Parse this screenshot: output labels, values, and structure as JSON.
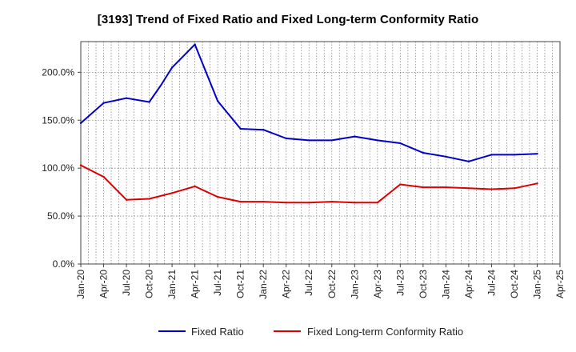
{
  "chart_data": {
    "type": "line",
    "title": "[3193]  Trend of Fixed Ratio and Fixed Long-term Conformity Ratio",
    "xlabel": "",
    "ylabel": "",
    "x": [
      "Jan-20",
      "Apr-20",
      "Jul-20",
      "Oct-20",
      "Jan-21",
      "Apr-21",
      "Jul-21",
      "Oct-21",
      "Jan-22",
      "Apr-22",
      "Jul-22",
      "Oct-22",
      "Jan-23",
      "Apr-23",
      "Jul-23",
      "Oct-23",
      "Jan-24",
      "Apr-24",
      "Jul-24",
      "Oct-24",
      "Jan-25"
    ],
    "x_ticks": [
      "Jan-20",
      "Apr-20",
      "Jul-20",
      "Oct-20",
      "Jan-21",
      "Apr-21",
      "Jul-21",
      "Oct-21",
      "Jan-22",
      "Apr-22",
      "Jul-22",
      "Oct-22",
      "Jan-23",
      "Apr-23",
      "Jul-23",
      "Oct-23",
      "Jan-24",
      "Apr-24",
      "Jul-24",
      "Oct-24",
      "Jan-25",
      "Apr-25"
    ],
    "y_ticks": [
      "0.0%",
      "50.0%",
      "100.0%",
      "150.0%",
      "200.0%"
    ],
    "y_tick_values": [
      0,
      50,
      100,
      150,
      200
    ],
    "ylim": [
      0,
      232
    ],
    "grid": true,
    "legend_position": "bottom",
    "series": [
      {
        "name": "Fixed Ratio",
        "color": "#0000cc",
        "values": [
          147,
          168,
          173,
          169,
          205,
          229,
          170,
          141,
          140,
          131,
          129,
          129,
          133,
          129,
          126,
          116,
          112,
          107,
          114,
          114,
          115
        ]
      },
      {
        "name": "Fixed Long-term Conformity Ratio",
        "color": "#dd0000",
        "values": [
          103,
          91,
          67,
          68,
          74,
          81,
          70,
          65,
          65,
          64,
          64,
          65,
          64,
          64,
          83,
          80,
          80,
          79,
          78,
          79,
          84
        ]
      }
    ],
    "extra_points": [
      {
        "series": "Fixed Ratio",
        "after_index": 3,
        "value": 186,
        "note": ""
      }
    ]
  }
}
